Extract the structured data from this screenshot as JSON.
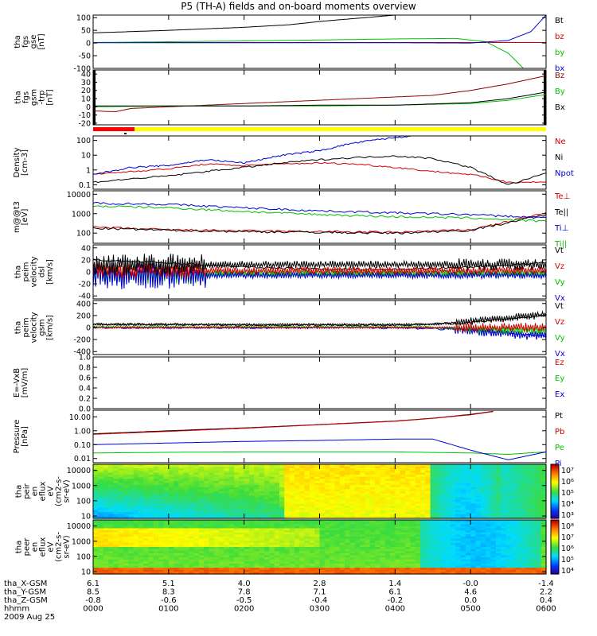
{
  "title": "P5 (TH-A) fields and on-board moments overview",
  "colors": {
    "black": "#000000",
    "red": "#d00000",
    "green": "#00c000",
    "blue": "#0000d0",
    "darkred": "#8b0000",
    "yellow": "#ffff00"
  },
  "panels": [
    {
      "id": "fgs-gse",
      "ylabel": [
        "tha",
        "fgs",
        "gse",
        "[nT]"
      ],
      "yscale": "linear",
      "ylim": [
        -100,
        110
      ],
      "ticks": [
        "100",
        "50",
        "0",
        "-50",
        "-100"
      ],
      "tickvals": [
        100,
        50,
        0,
        -50,
        -100
      ],
      "legend": [
        {
          "text": "Bt",
          "color": "#000000"
        },
        {
          "text": "bz",
          "color": "#d00000"
        },
        {
          "text": "by",
          "color": "#00c000"
        },
        {
          "text": "bx",
          "color": "#0000d0"
        }
      ]
    },
    {
      "id": "fgs-gsm",
      "ylabel": [
        "tha",
        "fgs",
        "gsm",
        "-trp",
        "[nT]"
      ],
      "yscale": "linear",
      "ylim": [
        -22,
        45
      ],
      "ticks": [
        "40",
        "30",
        "20",
        "10",
        "0",
        "-10",
        "-20"
      ],
      "tickvals": [
        40,
        30,
        20,
        10,
        0,
        -10,
        -20
      ],
      "legend": [
        {
          "text": "Bz",
          "color": "#8b0000"
        },
        {
          "text": "By",
          "color": "#00c000"
        },
        {
          "text": "Bx",
          "color": "#000000"
        }
      ]
    },
    {
      "id": "density",
      "ylabel": [
        "Density",
        "[cm-3]"
      ],
      "yscale": "log",
      "ylim": [
        0.05,
        200
      ],
      "ticks": [
        "100",
        "10",
        "1",
        "0.1"
      ],
      "tickvals": [
        100,
        10,
        1,
        0.1
      ],
      "legend": [
        {
          "text": "Ne",
          "color": "#d00000"
        },
        {
          "text": "Ni",
          "color": "#000000"
        },
        {
          "text": "Npot",
          "color": "#0000d0"
        }
      ]
    },
    {
      "id": "temperature",
      "ylabel": [
        "m@@t3",
        "[eV]"
      ],
      "yscale": "log",
      "ylim": [
        30,
        15000
      ],
      "ticks": [
        "10000",
        "1000",
        "100"
      ],
      "tickvals": [
        10000,
        1000,
        100
      ],
      "legend": [
        {
          "text": "Te⊥",
          "color": "#d00000"
        },
        {
          "text": "Te||",
          "color": "#000000"
        },
        {
          "text": "Ti⊥",
          "color": "#0000d0"
        },
        {
          "text": "Ti||",
          "color": "#00c000"
        }
      ]
    },
    {
      "id": "peim-velocity-dsl",
      "ylabel": [
        "tha",
        "peim",
        "velocity",
        "dsl",
        "[km/s]"
      ],
      "yscale": "linear",
      "ylim": [
        -45,
        45
      ],
      "ticks": [
        "40",
        "20",
        "0",
        "-20",
        "-40"
      ],
      "tickvals": [
        40,
        20,
        0,
        -20,
        -40
      ],
      "legend": [
        {
          "text": "Vt",
          "color": "#000000"
        },
        {
          "text": "Vz",
          "color": "#d00000"
        },
        {
          "text": "Vy",
          "color": "#00c000"
        },
        {
          "text": "Vx",
          "color": "#0000d0"
        }
      ]
    },
    {
      "id": "peim-velocity-gsm",
      "ylabel": [
        "tha",
        "peim",
        "velocity",
        "gsm",
        "[km/s]"
      ],
      "yscale": "linear",
      "ylim": [
        -450,
        450
      ],
      "ticks": [
        "400",
        "200",
        "0",
        "-200",
        "-400"
      ],
      "tickvals": [
        400,
        200,
        0,
        -200,
        -400
      ],
      "legend": [
        {
          "text": "Vt",
          "color": "#000000"
        },
        {
          "text": "Vz",
          "color": "#d00000"
        },
        {
          "text": "Vy",
          "color": "#00c000"
        },
        {
          "text": "Vx",
          "color": "#0000d0"
        }
      ]
    },
    {
      "id": "efield",
      "ylabel": [
        "E=-VxB",
        "[mV/m]"
      ],
      "yscale": "linear",
      "ylim": [
        0,
        1
      ],
      "ticks": [
        "1.0",
        "0.8",
        "0.6",
        "0.4",
        "0.2",
        "0.0"
      ],
      "tickvals": [
        1,
        0.8,
        0.6,
        0.4,
        0.2,
        0
      ],
      "legend": [
        {
          "text": "Ez",
          "color": "#d00000"
        },
        {
          "text": "Ey",
          "color": "#00c000"
        },
        {
          "text": "Ex",
          "color": "#0000d0"
        }
      ]
    },
    {
      "id": "pressure",
      "ylabel": [
        "Pressure",
        "[nPa]"
      ],
      "yscale": "log",
      "ylim": [
        0.005,
        30
      ],
      "ticks": [
        "10.00",
        "1.00",
        "0.10",
        "0.01"
      ],
      "tickvals": [
        10,
        1,
        0.1,
        0.01
      ],
      "legend": [
        {
          "text": "Pt",
          "color": "#000000"
        },
        {
          "text": "Pb",
          "color": "#d00000"
        },
        {
          "text": "Pe",
          "color": "#00c000"
        },
        {
          "text": "Pi",
          "color": "#0000d0"
        }
      ]
    },
    {
      "id": "peir-eflux",
      "ylabel": [
        "tha",
        "peir",
        "en",
        "eflux",
        "eV",
        "(cm2-s-",
        "sr-eV)"
      ],
      "yscale": "log",
      "ylim": [
        7,
        25000
      ],
      "ticks": [
        "10000",
        "1000",
        "100",
        "10"
      ],
      "tickvals": [
        10000,
        1000,
        100,
        10
      ],
      "colorbar": {
        "labels": [
          "10⁷",
          "10⁶",
          "10⁵",
          "10⁴",
          "10³"
        ],
        "range": [
          3,
          7.3
        ]
      }
    },
    {
      "id": "peer-eflux",
      "ylabel": [
        "tha",
        "peer",
        "en",
        "eflux",
        "eV",
        "(cm2-s-",
        "sr-eV)"
      ],
      "yscale": "log",
      "ylim": [
        7,
        25000
      ],
      "ticks": [
        "10000",
        "1000",
        "100",
        "10"
      ],
      "tickvals": [
        10000,
        1000,
        100,
        10
      ],
      "colorbar": {
        "labels": [
          "10⁸",
          "10⁷",
          "10⁶",
          "10⁵",
          "10⁴"
        ],
        "range": [
          3.5,
          8.2
        ]
      }
    }
  ],
  "chart_data": {
    "type": "line",
    "title": "P5 (TH-A) fields and on-board moments overview",
    "x_range": [
      "0000",
      "0600"
    ],
    "ephemeris": {
      "labels": [
        "tha_X-GSM",
        "tha_Y-GSM",
        "tha_Z-GSM",
        "hhmm",
        "2009 Aug 25"
      ],
      "columns": [
        [
          "6.1",
          "8.5",
          "-0.8",
          "0000"
        ],
        [
          "5.1",
          "8.3",
          "-0.6",
          "0100"
        ],
        [
          "4.0",
          "7.8",
          "-0.5",
          "0200"
        ],
        [
          "2.8",
          "7.1",
          "-0.4",
          "0300"
        ],
        [
          "1.4",
          "6.1",
          "-0.2",
          "0400"
        ],
        [
          "-0.0",
          "4.6",
          "0.0",
          "0500"
        ],
        [
          "-1.4",
          "2.2",
          "0.4",
          "0600"
        ]
      ]
    },
    "series": [
      {
        "panel": "fgs-gse",
        "name": "Bt",
        "color": "#000000",
        "x": [
          0,
          1,
          2,
          2.6,
          3,
          4,
          5,
          5.5,
          6
        ],
        "y": [
          40,
          50,
          62,
          72,
          85,
          110,
          140,
          160,
          180
        ]
      },
      {
        "panel": "fgs-gse",
        "name": "bz",
        "color": "#d00000",
        "x": [
          0,
          6
        ],
        "y": [
          2,
          2
        ]
      },
      {
        "panel": "fgs-gse",
        "name": "by",
        "color": "#00c000",
        "x": [
          0,
          1,
          2,
          3,
          4,
          4.8,
          5.2,
          5.5,
          5.7
        ],
        "y": [
          2,
          5,
          8,
          12,
          16,
          18,
          5,
          -40,
          -100
        ]
      },
      {
        "panel": "fgs-gse",
        "name": "bx",
        "color": "#0000d0",
        "x": [
          0,
          1,
          2,
          3,
          4,
          5,
          5.5,
          5.8,
          6
        ],
        "y": [
          1,
          1,
          1,
          1,
          1,
          0,
          10,
          45,
          110
        ]
      },
      {
        "panel": "fgs-gsm",
        "name": "Bz",
        "color": "#8b0000",
        "x": [
          0,
          0.3,
          0.5,
          1,
          2,
          3,
          4,
          4.5,
          5,
          5.5,
          6
        ],
        "y": [
          -5,
          -6,
          -2,
          0,
          4,
          8,
          12,
          14,
          20,
          28,
          38
        ]
      },
      {
        "panel": "fgs-gsm",
        "name": "By",
        "color": "#00c000",
        "x": [
          0,
          1,
          2,
          3,
          4,
          5,
          5.5,
          6
        ],
        "y": [
          0,
          1,
          1,
          1,
          2,
          4,
          8,
          15
        ]
      },
      {
        "panel": "fgs-gsm",
        "name": "Bx",
        "color": "#000000",
        "x": [
          0,
          1,
          2,
          3,
          4,
          5,
          5.5,
          6
        ],
        "y": [
          1,
          1,
          1,
          2,
          2,
          5,
          10,
          18
        ]
      },
      {
        "panel": "density",
        "name": "Ne",
        "color": "#d00000",
        "x": [
          0,
          0.5,
          1,
          1.5,
          2,
          2.5,
          3,
          3.5,
          4,
          4.5,
          5,
          5.5,
          6
        ],
        "y": [
          0.5,
          0.8,
          1.2,
          2.5,
          2.0,
          2.5,
          3.0,
          2.5,
          1.5,
          0.8,
          0.5,
          0.15,
          0.15
        ]
      },
      {
        "panel": "density",
        "name": "Ni",
        "color": "#000000",
        "x": [
          0,
          0.5,
          1,
          1.5,
          2,
          2.5,
          3,
          3.5,
          4,
          4.5,
          5,
          5.5,
          6
        ],
        "y": [
          0.15,
          0.25,
          0.4,
          0.8,
          1.5,
          3,
          5,
          7,
          9,
          6,
          1.5,
          0.1,
          0.6
        ]
      },
      {
        "panel": "density",
        "name": "Npot",
        "color": "#0000d0",
        "x": [
          0,
          0.5,
          1,
          1.5,
          2,
          2.5,
          3,
          3.4,
          3.8,
          4.2
        ],
        "y": [
          0.5,
          1.5,
          2,
          5,
          3,
          10,
          20,
          60,
          120,
          200
        ]
      },
      {
        "panel": "temperature",
        "name": "Te⊥",
        "color": "#d00000",
        "x": [
          0,
          1,
          2,
          3,
          4,
          5,
          5.5,
          6
        ],
        "y": [
          200,
          150,
          130,
          120,
          110,
          150,
          400,
          1100
        ]
      },
      {
        "panel": "temperature",
        "name": "Te||",
        "color": "#000000",
        "x": [
          0,
          1,
          2,
          3,
          4,
          5,
          5.5,
          6
        ],
        "y": [
          180,
          140,
          120,
          110,
          100,
          140,
          350,
          900
        ]
      },
      {
        "panel": "temperature",
        "name": "Ti⊥",
        "color": "#0000d0",
        "x": [
          0,
          1,
          2,
          3,
          4,
          5,
          6
        ],
        "y": [
          3500,
          3000,
          2000,
          1400,
          1100,
          900,
          600
        ]
      },
      {
        "panel": "temperature",
        "name": "Ti||",
        "color": "#00c000",
        "x": [
          0,
          1,
          2,
          3,
          4,
          5,
          6
        ],
        "y": [
          2500,
          2000,
          1300,
          900,
          700,
          600,
          400
        ]
      },
      {
        "panel": "peim-velocity-dsl",
        "name": "Vt",
        "color": "#000000",
        "x": [
          0,
          1,
          2,
          3,
          4,
          5,
          6
        ],
        "y": [
          20,
          15,
          8,
          5,
          4,
          8,
          15
        ]
      },
      {
        "panel": "peim-velocity-gsm",
        "name": "Vt",
        "color": "#000000",
        "x": [
          0,
          1,
          2,
          3,
          4,
          5,
          5.5,
          6
        ],
        "y": [
          60,
          50,
          40,
          40,
          40,
          80,
          150,
          200
        ]
      },
      {
        "panel": "peim-velocity-gsm",
        "name": "Vx",
        "color": "#0000d0",
        "x": [
          0,
          1,
          2,
          3,
          4,
          5,
          5.5,
          6
        ],
        "y": [
          0,
          0,
          0,
          0,
          0,
          -40,
          -90,
          -150
        ]
      },
      {
        "panel": "pressure",
        "name": "Pt",
        "color": "#000000",
        "x": [
          0,
          1,
          2,
          3,
          4,
          4.5,
          5,
          5.3
        ],
        "y": [
          0.6,
          1.0,
          1.6,
          2.8,
          5,
          8,
          15,
          25
        ]
      },
      {
        "panel": "pressure",
        "name": "Pb",
        "color": "#d00000",
        "x": [
          0,
          1,
          2,
          3,
          4,
          4.5,
          5,
          5.3
        ],
        "y": [
          0.55,
          0.9,
          1.5,
          2.7,
          4.8,
          7.8,
          14,
          24
        ]
      },
      {
        "panel": "pressure",
        "name": "Pe",
        "color": "#00c000",
        "x": [
          0,
          1,
          2,
          3,
          4,
          5,
          5.5,
          6
        ],
        "y": [
          0.025,
          0.028,
          0.03,
          0.03,
          0.03,
          0.025,
          0.02,
          0.03
        ]
      },
      {
        "panel": "pressure",
        "name": "Pi",
        "color": "#0000d0",
        "x": [
          0,
          1,
          2,
          3,
          4,
          4.5,
          5,
          5.5,
          6
        ],
        "y": [
          0.1,
          0.13,
          0.17,
          0.2,
          0.25,
          0.25,
          0.04,
          0.008,
          0.03
        ]
      }
    ]
  }
}
